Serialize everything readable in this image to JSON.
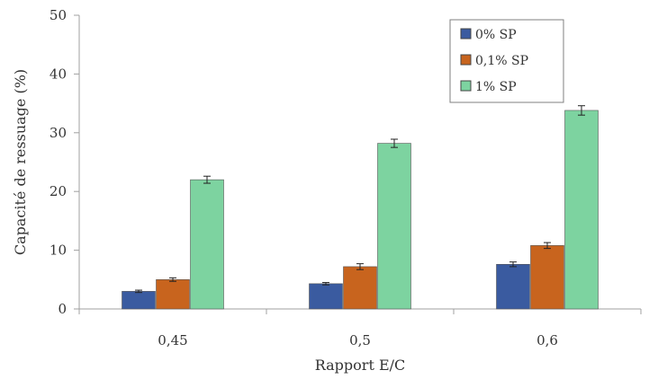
{
  "chart_data": {
    "type": "bar",
    "title": "",
    "xlabel": "Rapport E/C",
    "ylabel": "Capacité de ressuage (%)",
    "ylim": [
      0,
      50
    ],
    "yticks": [
      "0",
      "10",
      "20",
      "30",
      "40",
      "50"
    ],
    "categories": [
      "0,45",
      "0,5",
      "0,6"
    ],
    "series": [
      {
        "name": "0% SP",
        "color": "#3A5BA0",
        "values": [
          3.0,
          4.3,
          7.6
        ],
        "errors": [
          0.2,
          0.2,
          0.4
        ]
      },
      {
        "name": "0,1% SP",
        "color": "#C8641E",
        "values": [
          5.0,
          7.2,
          10.8
        ],
        "errors": [
          0.3,
          0.5,
          0.5
        ]
      },
      {
        "name": "1% SP",
        "color": "#7DD3A0",
        "values": [
          22.0,
          28.2,
          33.8
        ],
        "errors": [
          0.6,
          0.7,
          0.8
        ]
      }
    ],
    "grid": false,
    "error_bars": true,
    "legend_position": "top-right"
  }
}
